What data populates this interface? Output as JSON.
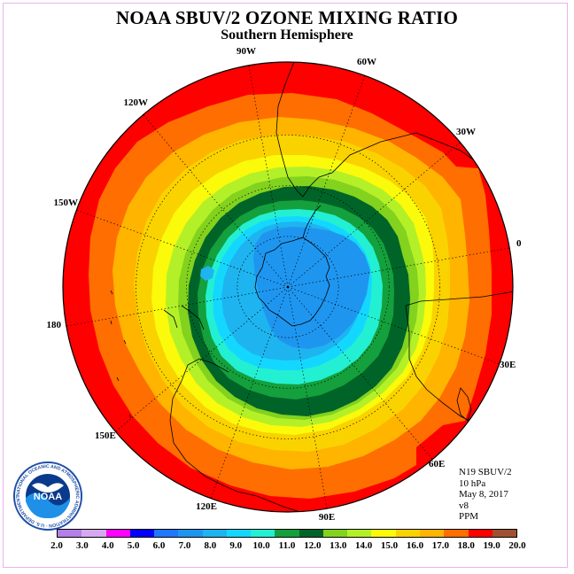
{
  "header": {
    "title": "NOAA SBUV/2 OZONE MIXING RATIO",
    "subtitle": "Southern Hemisphere"
  },
  "map": {
    "projection": "south-polar-stereographic",
    "graticule": "dotted",
    "longitude_labels": [
      "0",
      "30E",
      "60E",
      "90E",
      "120E",
      "150E",
      "180",
      "150W",
      "120W",
      "90W",
      "60W",
      "30W"
    ],
    "field": "ozone mixing ratio (PPM) at 10 hPa",
    "pattern": "minimum of about 7-8 PPM over Antarctica, a dark-green 11-12 PPM collar around it, rising to 18-19 PPM near the equator"
  },
  "info_block": {
    "lines": [
      "N19 SBUV/2",
      "10 hPa",
      "May 8, 2017",
      "v8",
      "PPM"
    ]
  },
  "logo": {
    "text": "NOAA",
    "ring_text": "NATIONAL OCEANIC AND ATMOSPHERIC ADMINISTRATION · U.S. DEPARTMENT OF COMMERCE"
  },
  "colorbar": {
    "ticks": [
      "2.0",
      "3.0",
      "4.0",
      "5.0",
      "6.0",
      "7.0",
      "8.0",
      "9.0",
      "10.0",
      "11.0",
      "12.0",
      "13.0",
      "14.0",
      "15.0",
      "16.0",
      "17.0",
      "18.0",
      "19.0",
      "20.0"
    ],
    "colors": [
      "#b47fe8",
      "#d6a8f0",
      "#ff00ff",
      "#0000ff",
      "#1e78ff",
      "#1e96f0",
      "#1eb4f0",
      "#14d7ff",
      "#23f0d2",
      "#14a03c",
      "#006428",
      "#82d21e",
      "#b4f028",
      "#fafa0a",
      "#fad200",
      "#ffb400",
      "#ff6e00",
      "#ff0000",
      "#a05032"
    ]
  }
}
